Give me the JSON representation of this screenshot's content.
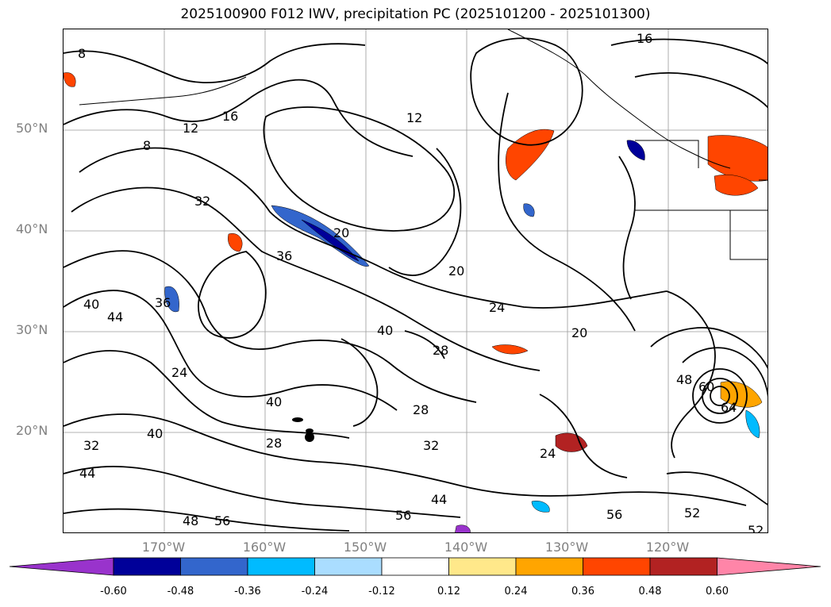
{
  "title": "2025100900 F012 IWV, precipitation PC (2025101200 - 2025101300)",
  "lat_labels": [
    "50°N",
    "40°N",
    "30°N",
    "20°N"
  ],
  "lon_labels": [
    "170°W",
    "160°W",
    "150°W",
    "140°W",
    "130°W",
    "120°W"
  ],
  "contour_labels": [
    "8",
    "12",
    "16",
    "20",
    "24",
    "28",
    "32",
    "36",
    "40",
    "44",
    "48",
    "52",
    "56",
    "60",
    "64"
  ],
  "colorbar": {
    "ticks": [
      "-0.60",
      "-0.48",
      "-0.36",
      "-0.24",
      "-0.12",
      "0.12",
      "0.24",
      "0.36",
      "0.48",
      "0.60"
    ],
    "colors": [
      "#9933cc",
      "#000099",
      "#3366cc",
      "#00bbff",
      "#aaddff",
      "#ffffff",
      "#ffe88a",
      "#ffa500",
      "#ff4500",
      "#b22222",
      "#ff85a8"
    ]
  }
}
